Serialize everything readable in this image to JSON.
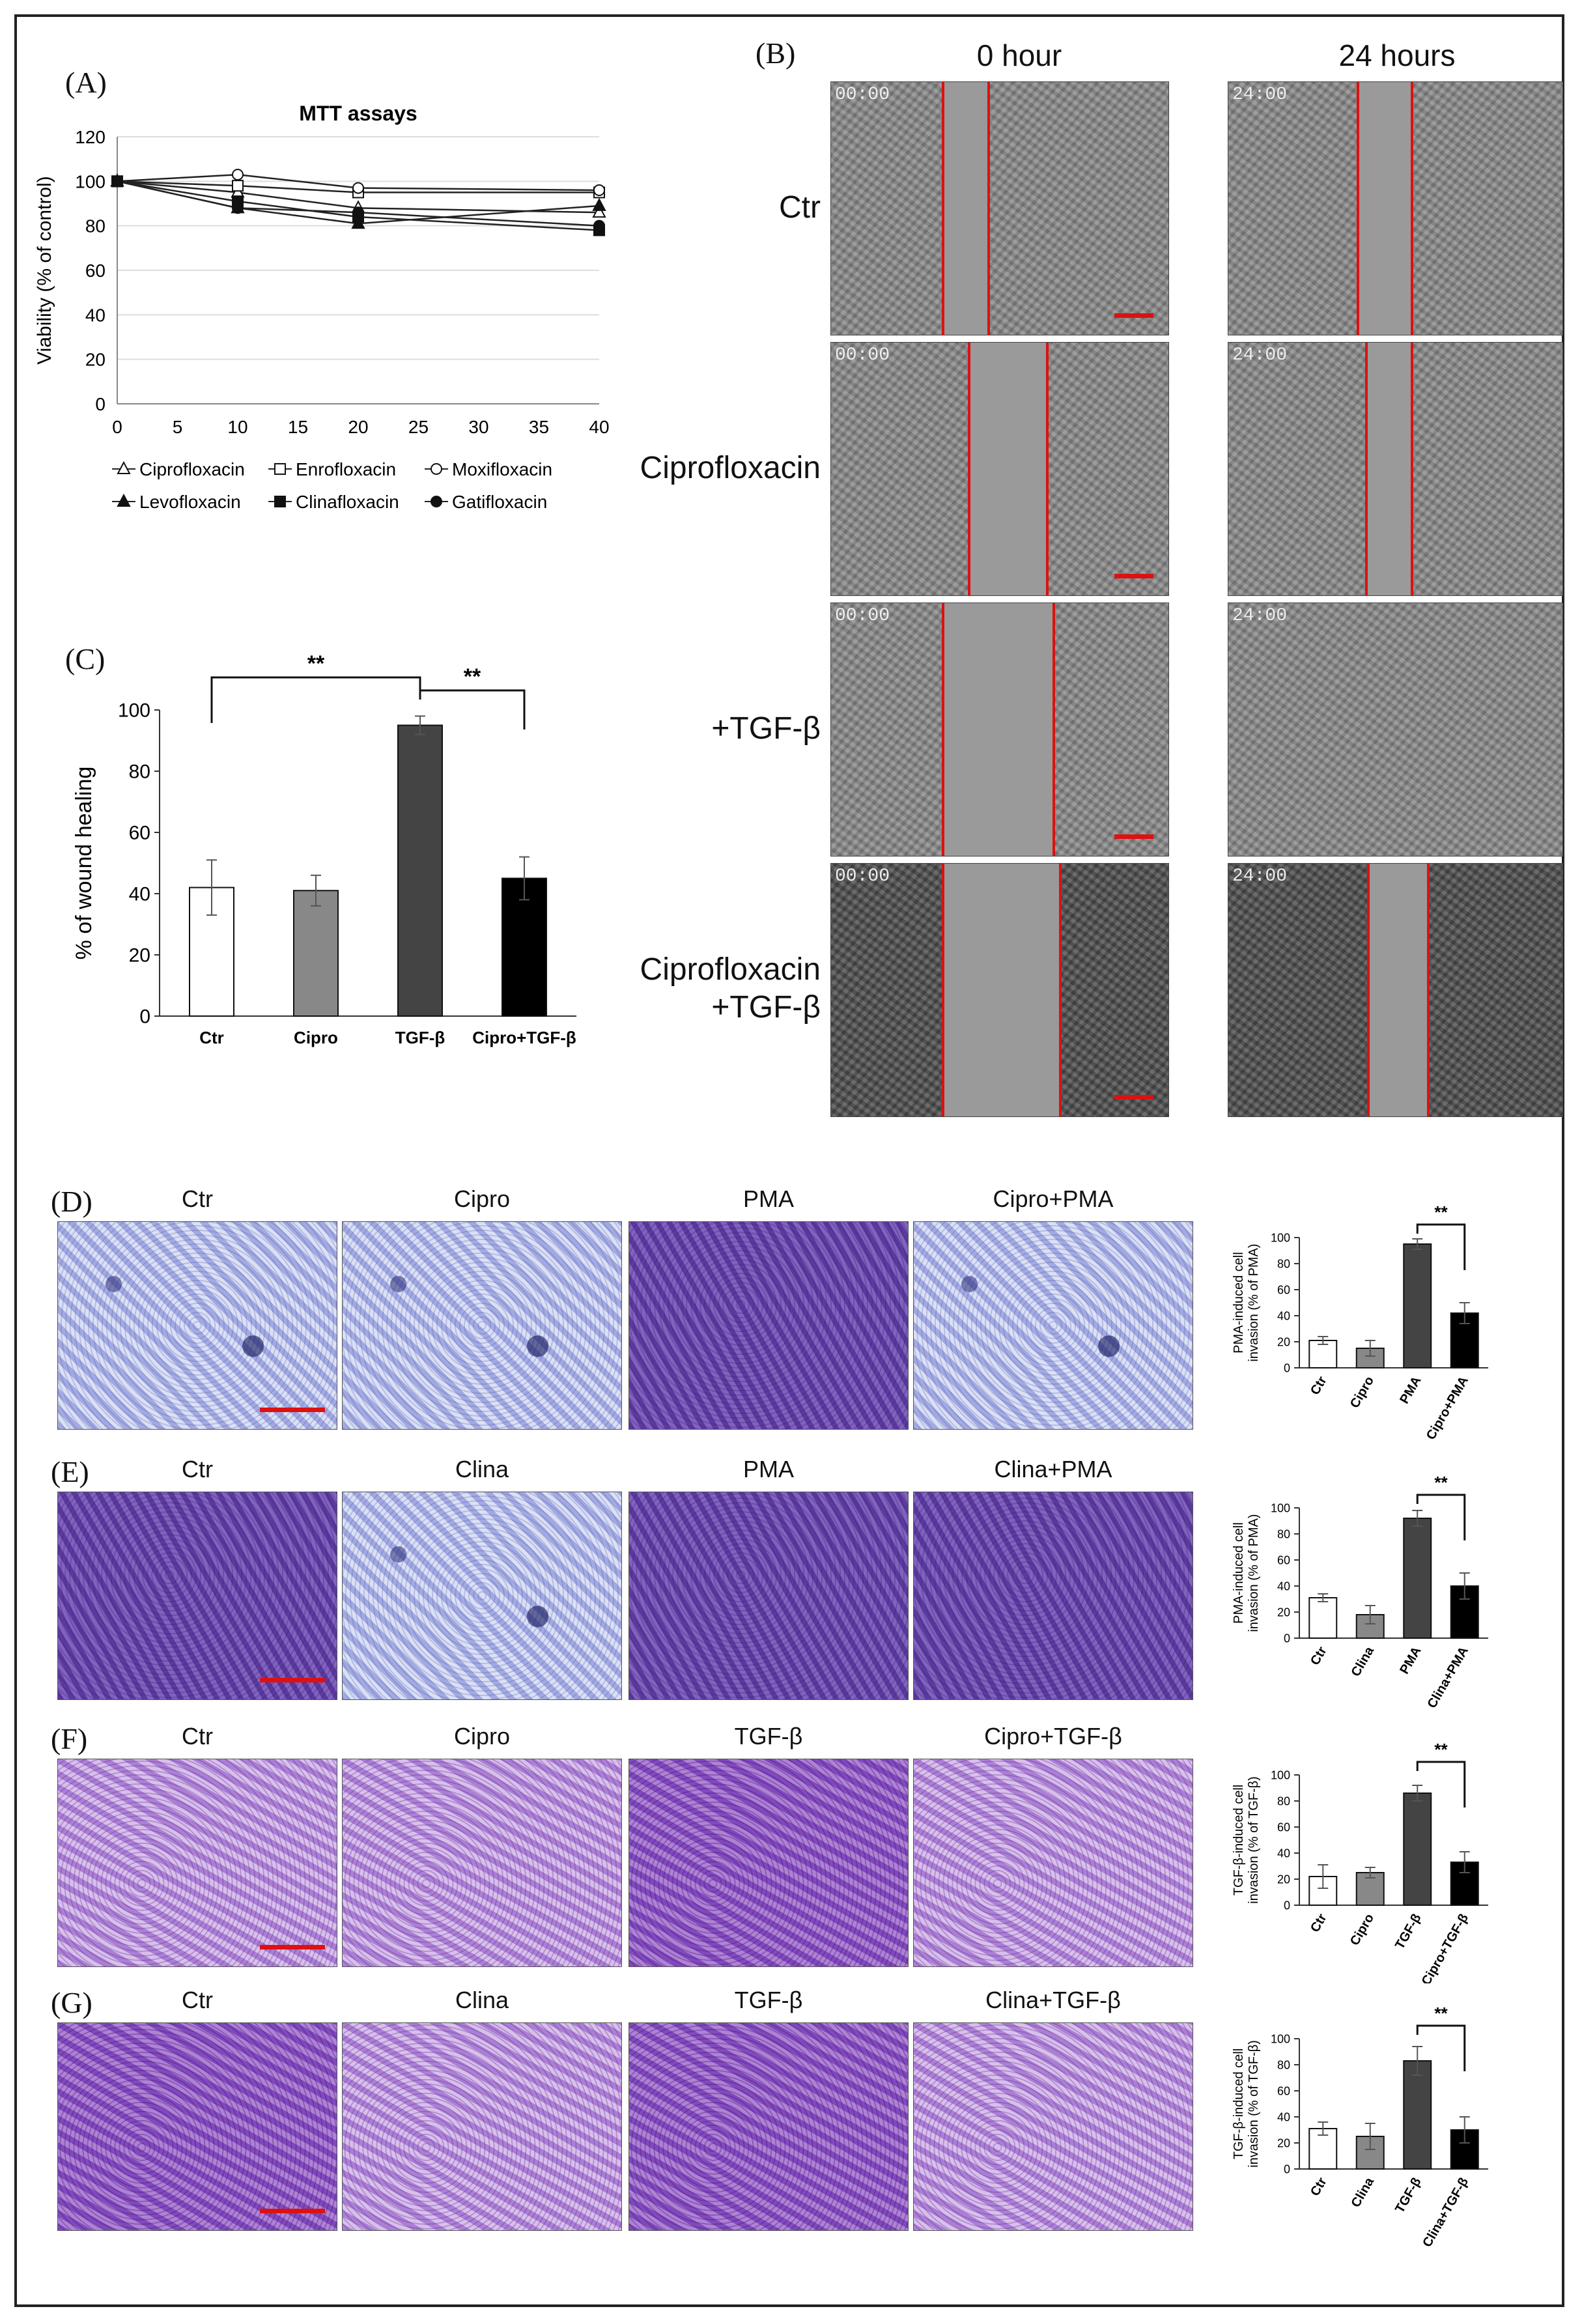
{
  "panels": {
    "A": "(A)",
    "B": "(B)",
    "C": "(C)",
    "D": "(D)",
    "E": "(E)",
    "F": "(F)",
    "G": "(G)"
  },
  "colors": {
    "scratch_line": "#d11",
    "bar_dark": "#444444",
    "bar_gray": "#888888",
    "bar_black": "#000000"
  },
  "panel_b": {
    "col_headers": [
      "0 hour",
      "24 hours"
    ],
    "row_labels": [
      "Ctr",
      "Ciprofloxacin",
      "+TGF-β",
      "Ciprofloxacin\n+TGF-β"
    ],
    "row_label_lines": [
      [
        "Ctr"
      ],
      [
        "Ciprofloxacin"
      ],
      [
        "+TGF-β"
      ],
      [
        "Ciprofloxacin",
        "+TGF-β"
      ]
    ],
    "stamps": [
      "00:00",
      "24:00"
    ]
  },
  "panel_d": {
    "headers": [
      "Ctr",
      "Cipro",
      "PMA",
      "Cipro+PMA"
    ]
  },
  "panel_e": {
    "headers": [
      "Ctr",
      "Clina",
      "PMA",
      "Clina+PMA"
    ]
  },
  "panel_f": {
    "headers": [
      "Ctr",
      "Cipro",
      "TGF-β",
      "Cipro+TGF-β"
    ]
  },
  "panel_g": {
    "headers": [
      "Ctr",
      "Clina",
      "TGF-β",
      "Clina+TGF-β"
    ]
  },
  "chart_data": [
    {
      "id": "A",
      "type": "line",
      "title": "MTT assays",
      "xlabel": "",
      "ylabel": "Viability (% of control)",
      "x": [
        0,
        10,
        20,
        40
      ],
      "xticks": [
        0,
        5,
        10,
        15,
        20,
        25,
        30,
        35,
        40
      ],
      "yticks": [
        0,
        20,
        40,
        60,
        80,
        100,
        120
      ],
      "xlim": [
        0,
        40
      ],
      "ylim": [
        0,
        120
      ],
      "grid": true,
      "legend_position": "bottom",
      "series": [
        {
          "name": "Ciprofloxacin",
          "marker": "open-triangle",
          "values": [
            100,
            95,
            88,
            86
          ]
        },
        {
          "name": "Enrofloxacin",
          "marker": "open-square",
          "values": [
            100,
            98,
            95,
            95
          ]
        },
        {
          "name": "Moxifloxacin",
          "marker": "open-circle",
          "values": [
            100,
            103,
            97,
            96
          ]
        },
        {
          "name": "Levofloxacin",
          "marker": "filled-triangle",
          "values": [
            100,
            88,
            81,
            89
          ]
        },
        {
          "name": "Clinafloxacin",
          "marker": "filled-square",
          "values": [
            100,
            91,
            84,
            78
          ]
        },
        {
          "name": "Gatifloxacin",
          "marker": "filled-circle",
          "values": [
            100,
            88,
            86,
            80
          ]
        }
      ]
    },
    {
      "id": "C",
      "type": "bar",
      "title": "",
      "xlabel": "",
      "ylabel": "% of wound healing",
      "categories": [
        "Ctr",
        "Cipro",
        "TGF-β",
        "Cipro+TGF-β"
      ],
      "values": [
        42,
        41,
        95,
        45
      ],
      "errors": [
        9,
        5,
        3,
        7
      ],
      "yticks": [
        0,
        20,
        40,
        60,
        80,
        100
      ],
      "ylim": [
        0,
        100
      ],
      "significance": [
        {
          "from": 0,
          "to": 2,
          "label": "**"
        },
        {
          "from": 2,
          "to": 3,
          "label": "**"
        }
      ]
    },
    {
      "id": "D",
      "type": "bar",
      "ylabel_lines": [
        "PMA-induced cell",
        "invasion (% of PMA)"
      ],
      "categories": [
        "Ctr",
        "Cipro",
        "PMA",
        "Cipro+PMA"
      ],
      "values": [
        21,
        15,
        95,
        42
      ],
      "errors": [
        3,
        6,
        4,
        8
      ],
      "yticks": [
        0,
        20,
        40,
        60,
        80,
        100
      ],
      "ylim": [
        0,
        100
      ],
      "significance": [
        {
          "from": 2,
          "to": 3,
          "label": "**"
        }
      ]
    },
    {
      "id": "E",
      "type": "bar",
      "ylabel_lines": [
        "PMA-induced cell",
        "invasion (% of PMA)"
      ],
      "categories": [
        "Ctr",
        "Clina",
        "PMA",
        "Clina+PMA"
      ],
      "values": [
        31,
        18,
        92,
        40
      ],
      "errors": [
        3,
        7,
        6,
        10
      ],
      "yticks": [
        0,
        20,
        40,
        60,
        80,
        100
      ],
      "ylim": [
        0,
        100
      ],
      "significance": [
        {
          "from": 2,
          "to": 3,
          "label": "**"
        }
      ]
    },
    {
      "id": "F",
      "type": "bar",
      "ylabel_lines": [
        "TGF-β-induced cell",
        "invasion (% of TGF-β)"
      ],
      "categories": [
        "Ctr",
        "Cipro",
        "TGF-β",
        "Cipro+TGF-β"
      ],
      "values": [
        22,
        25,
        86,
        33
      ],
      "errors": [
        9,
        4,
        6,
        8
      ],
      "yticks": [
        0,
        20,
        40,
        60,
        80,
        100
      ],
      "ylim": [
        0,
        100
      ],
      "significance": [
        {
          "from": 2,
          "to": 3,
          "label": "**"
        }
      ]
    },
    {
      "id": "G",
      "type": "bar",
      "ylabel_lines": [
        "TGF-β-induced cell",
        "invasion (% of TGF-β)"
      ],
      "categories": [
        "Ctr",
        "Clina",
        "TGF-β",
        "Clina+TGF-β"
      ],
      "values": [
        31,
        25,
        83,
        30
      ],
      "errors": [
        5,
        10,
        11,
        10
      ],
      "yticks": [
        0,
        20,
        40,
        60,
        80,
        100
      ],
      "ylim": [
        0,
        100
      ],
      "significance": [
        {
          "from": 2,
          "to": 3,
          "label": "**"
        }
      ]
    }
  ]
}
